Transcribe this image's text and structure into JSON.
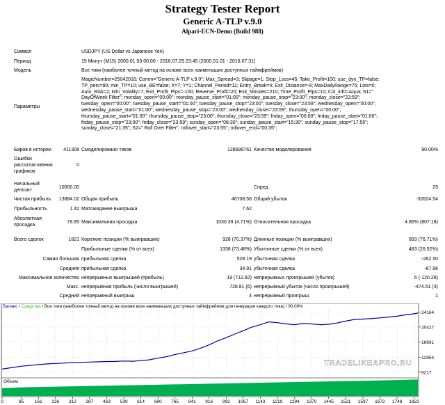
{
  "title": "Strategy Tester Report",
  "ea_name": "Generic A-TLP v.9.0",
  "server": "Alpari-ECN-Demo (Build 988)",
  "info": {
    "symbol_label": "Символ",
    "symbol_value": "USDJPY (US Dollar vs Japanese Yen)",
    "period_label": "Период",
    "period_value": "15 Минут (M15) 2000.01.03 00:00 - 2016.07.29 23:45 (2000.01.01 - 2016.07.31)",
    "model_label": "Модель",
    "model_value": "Все тики (наиболее точный метод на основе всех наименьших доступных таймфреймов)",
    "params_label": "Параметры",
    "params_lines": [
      "MagicNumber=25042016; Comm=\"Generic A-TLP v.9.0\"; Max_Spread=3; Slipage=1; Stop_Loss=45; Take_Profit=100; use_dyn_TP=false;",
      "TP_perc=80; min_TP=10; use_BE=false; X=7; Y=1; Channel_Period=11; Entry_Break=4; Exit_Distance=-8; MaxDailyRange=75; Lots=0;",
      "Auto_Risk=2; Min_Volality=7; Exit_Profit_Pips=-100; Reverse_Profit=20; Exit_Minutes=210; Time_Profit_Pips=10; Col_info=Aqua; S1=\"",
      "DayOfWeek Filter\"; monday_open=\"00:00\"; monday_pause_start=\"01:00\"; monday_pause_stop=\"23:00\"; monday_close=\"23:59\";",
      "tuesday_open=\"00:00\"; tuesday_pause_start=\"01:00\"; tuesday_pause_stop=\"23:00\"; tuesday_close=\"23:59\"; wednesday_open=\"00:00\";",
      "wednesday_pause_start=\"01:00\"; wednesday_pause_stop=\"23:00\"; wednesday_close=\"23:59\"; thursday_open=\"00:00\";",
      "thursday_pause_start=\"01:00\"; thursday_pause_stop=\"23:00\"; thursday_close=\"23:59\"; friday_open=\"00:00\"; friday_pause_start=\"01:00\";",
      "friday_pause_stop=\"23:00\"; friday_close=\"23:59\"; sunday_open=\"08:30\"; sunday_pause_start=\"15:30\"; sunday_pause_stop=\"17:55\";",
      "sunday_close=\"21:35\"; S2=\" Roll Over Filter\"; rollover_start=\"23:55\"; rollover_end=\"00:35\";"
    ],
    "bars_label": "Баров в истории",
    "bars_value": "411308",
    "ticks_label": "Смоделировано тиков",
    "ticks_value": "128699761",
    "quality_label": "Качество моделирования",
    "quality_value": "90.00%",
    "errors_label_1": "Ошибки",
    "errors_label_2": "рассогласования",
    "errors_label_3": "графиков",
    "errors_value": "0"
  },
  "stats": {
    "deposit_label_1": "Начальный",
    "deposit_label_2": "депозит",
    "deposit_value": "10000.00",
    "spread_label": "Спред",
    "spread_value": "25",
    "net_label": "Чистая прибыль",
    "net_value": "13884.02",
    "gross_profit_label": "Общая прибыль",
    "gross_profit_value": "46708.56",
    "gross_loss_label": "Общий убыток",
    "gross_loss_value": "-32824.54",
    "pf_label": "Прибыльность",
    "pf_value": "1.42",
    "payoff_label": "Матожидание выигрыша",
    "payoff_value": "7.62",
    "abs_dd_label_1": "Абсолютная",
    "abs_dd_label_2": "просадка",
    "abs_dd_value": "79.85",
    "max_dd_label": "Максимальная просадка",
    "max_dd_value": "1030.39 (4.71%)",
    "rel_dd_label": "Относительная просадка",
    "rel_dd_value": "4.86% (807.18)",
    "total_label": "Всего сделок",
    "total_value": "1821",
    "short_label": "Короткие позиции (% выигравших)",
    "short_value": "928 (70.37%)",
    "long_label": "Длинные позиции (% выигравших)",
    "long_value": "893 (76.71%)",
    "profit_trades_label": "Прибыльные сделки (% от всех)",
    "profit_trades_value": "1338 (73.48%)",
    "loss_trades_label": "Убыточные сделки (% от всех)",
    "loss_trades_value": "483 (26.52%)",
    "largest_label_a": "Самая большая",
    "largest_profit_label": "прибыльная сделка",
    "largest_profit_value": "528.19",
    "largest_loss_label": "убыточная сделка",
    "largest_loss_value": "-262.50",
    "average_label_a": "Средняя",
    "average_profit_label": "прибыльная сделка",
    "average_profit_value": "34.91",
    "average_loss_label": "убыточная сделка",
    "average_loss_value": "-67.96",
    "maxcons_label_a": "Максимальное количество",
    "maxcons_win_label": "непрерывных выигрышей (прибыль)",
    "maxcons_win_value": "19 (712.82)",
    "maxcons_loss_label": "непрерывных проигрышей (убыток)",
    "maxcons_loss_value": "6 (-120.28)",
    "maxprofit_label_a": "Макс.",
    "maxprofit_win_label": "непрерывная прибыль (число выигрышей)",
    "maxprofit_win_value": "728.81 (6)",
    "maxprofit_loss_label": "непрерывный убыток (число проигрышей)",
    "maxprofit_loss_value": "-474.51 (3)",
    "avgcons_label_a": "Средний",
    "avgcons_win_label": "непрерывный выигрыш",
    "avgcons_win_value": "4",
    "avgcons_loss_label": "непрерывный проигрыш",
    "avgcons_loss_value": "1"
  },
  "chart_data": {
    "type": "line",
    "legend": {
      "balance": "Баланс",
      "sep1": " / ",
      "equity": "Средства",
      "rest": " / Все тики (наиболее точный метод на основе всех наименьших доступных таймфреймов для генерации каждого тика) / 90.00%"
    },
    "watermark": "TRADELIKEAPRO.RU",
    "volume_label": "Объем",
    "y_ticks": [
      "24164",
      "20427",
      "16691",
      "12954",
      "9217"
    ],
    "y_tick_values": [
      24164,
      20427,
      16691,
      12954,
      9217
    ],
    "x_ticks": [
      "0",
      "85",
      "161",
      "236",
      "312",
      "387",
      "463",
      "539",
      "614",
      "690",
      "765",
      "841",
      "916",
      "992",
      "1067",
      "1143",
      "1219",
      "1294",
      "1370",
      "1445",
      "1521",
      "1597",
      "1672",
      "1748",
      "1823"
    ],
    "x_range": [
      0,
      1840
    ],
    "y_range": [
      8000,
      24900
    ],
    "balance_color": "#000099",
    "equity_color": "#33bb33",
    "volume_color": "#00b050",
    "series": [
      {
        "x": [
          0,
          40,
          85,
          120,
          161,
          200,
          236,
          280,
          312,
          350,
          387,
          420,
          463,
          500,
          539,
          580,
          614,
          650,
          690,
          730,
          765,
          800,
          841,
          880,
          916,
          950,
          992,
          1030,
          1067,
          1100,
          1143,
          1180,
          1219,
          1260,
          1294,
          1330,
          1370,
          1410,
          1445,
          1480,
          1521,
          1560,
          1597,
          1630,
          1672,
          1710,
          1748,
          1790,
          1823,
          1840
        ],
        "values": [
          10000,
          10350,
          10700,
          10900,
          11100,
          11300,
          11400,
          11500,
          11600,
          11680,
          11750,
          11800,
          11880,
          11900,
          12000,
          11950,
          12100,
          12300,
          12700,
          13100,
          13600,
          14000,
          14500,
          15200,
          16000,
          16900,
          17800,
          18700,
          19500,
          20300,
          21000,
          21700,
          21500,
          21200,
          21000,
          21300,
          21200,
          21000,
          21100,
          21400,
          21900,
          22300,
          22400,
          22500,
          22700,
          22900,
          23100,
          23500,
          23700,
          23884
        ]
      }
    ],
    "volume": [
      {
        "x": 0,
        "v": 0.45
      },
      {
        "x": 100,
        "v": 0.5
      },
      {
        "x": 300,
        "v": 0.55
      },
      {
        "x": 500,
        "v": 0.6
      },
      {
        "x": 700,
        "v": 0.65
      },
      {
        "x": 900,
        "v": 0.7
      },
      {
        "x": 1100,
        "v": 0.75
      },
      {
        "x": 1300,
        "v": 0.8
      },
      {
        "x": 1500,
        "v": 0.85
      },
      {
        "x": 1700,
        "v": 0.9
      },
      {
        "x": 1840,
        "v": 0.95
      }
    ]
  }
}
